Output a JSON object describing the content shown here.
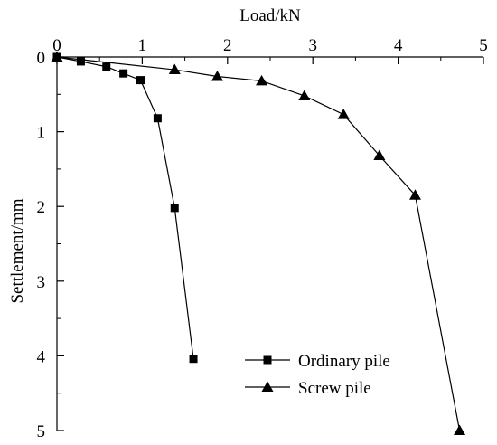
{
  "chart_data": {
    "type": "line",
    "title": "",
    "xlabel": "Load/kN",
    "ylabel": "Settlement/mm",
    "xaxis_position": "top",
    "y_inverted": true,
    "xlim": [
      0,
      5
    ],
    "ylim": [
      0,
      5
    ],
    "xticks": [
      0,
      1,
      2,
      3,
      4,
      5
    ],
    "yticks": [
      0,
      1,
      2,
      3,
      4,
      5
    ],
    "grid": false,
    "legend_position": "bottom-center",
    "series": [
      {
        "name": "Ordinary pile",
        "marker": "square",
        "color": "#000000",
        "x": [
          0,
          0.28,
          0.58,
          0.78,
          0.98,
          1.18,
          1.38,
          1.6
        ],
        "y": [
          0,
          0.06,
          0.13,
          0.22,
          0.31,
          0.82,
          2.02,
          4.04
        ]
      },
      {
        "name": "Screw pile",
        "marker": "triangle",
        "color": "#000000",
        "x": [
          0,
          1.38,
          1.88,
          2.4,
          2.9,
          3.36,
          3.78,
          4.2,
          4.72
        ],
        "y": [
          0,
          0.17,
          0.26,
          0.32,
          0.52,
          0.77,
          1.32,
          1.85,
          5.0
        ]
      }
    ]
  }
}
